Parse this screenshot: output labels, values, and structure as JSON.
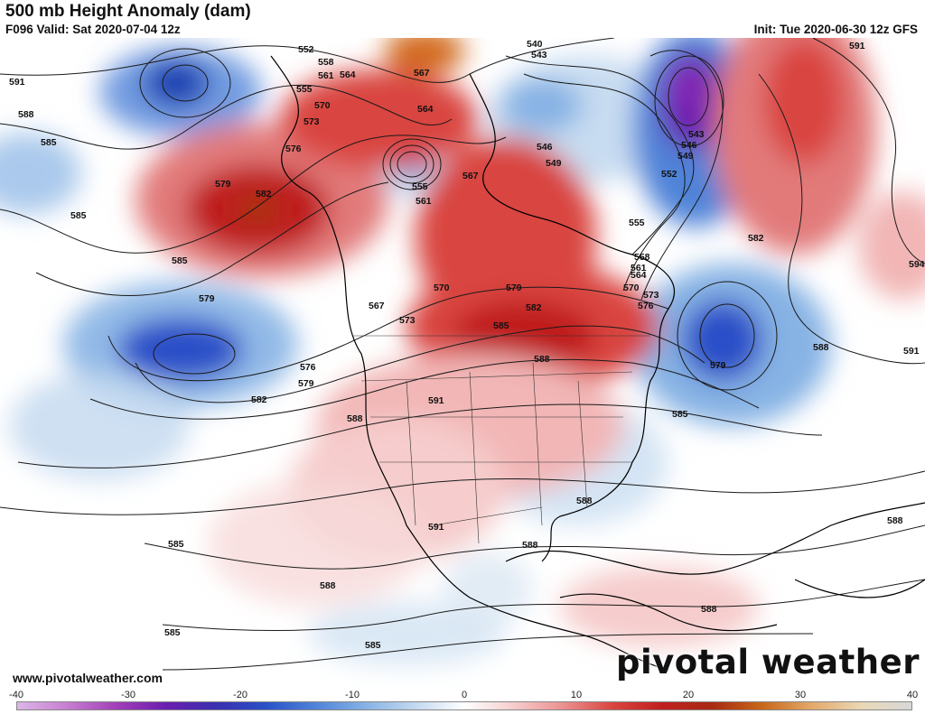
{
  "header": {
    "title": "500 mb Height Anomaly (dam)",
    "valid": "F096 Valid: Sat 2020-07-04 12z",
    "init": "Init: Tue 2020-06-30 12z GFS"
  },
  "footer": {
    "site": "www.pivotalweather.com",
    "logo": "pivotal weather"
  },
  "colorbar": {
    "ticks": [
      "-40",
      "-30",
      "-20",
      "-10",
      "0",
      "10",
      "20",
      "30",
      "40"
    ],
    "colors": [
      "#dcb6e6",
      "#c77fd0",
      "#a23fb8",
      "#6a1fb0",
      "#3a2fb0",
      "#2a50c8",
      "#4f83d8",
      "#86b2e4",
      "#c2d8ef",
      "#ffffff",
      "#f6cccc",
      "#eb8f8f",
      "#d9443f",
      "#bf1f1f",
      "#a82a12",
      "#c8681a",
      "#e4a96a",
      "#e9d8b5",
      "#d8d8d8"
    ]
  },
  "contour_labels": [
    "552",
    "555",
    "558",
    "561",
    "564",
    "567",
    "570",
    "573",
    "576",
    "579",
    "582",
    "585",
    "588",
    "591",
    "594",
    "540",
    "543",
    "546",
    "549"
  ],
  "colors": {
    "positive_anomaly": "#d9443f",
    "strong_positive": "#b01818",
    "negative_anomaly": "#4f83d8",
    "strong_negative": "#2a50c8",
    "extreme_negative": "#7a23b8",
    "extreme_positive": "#d2691e",
    "contour": "#1a1a1a",
    "coastline": "#000000"
  }
}
